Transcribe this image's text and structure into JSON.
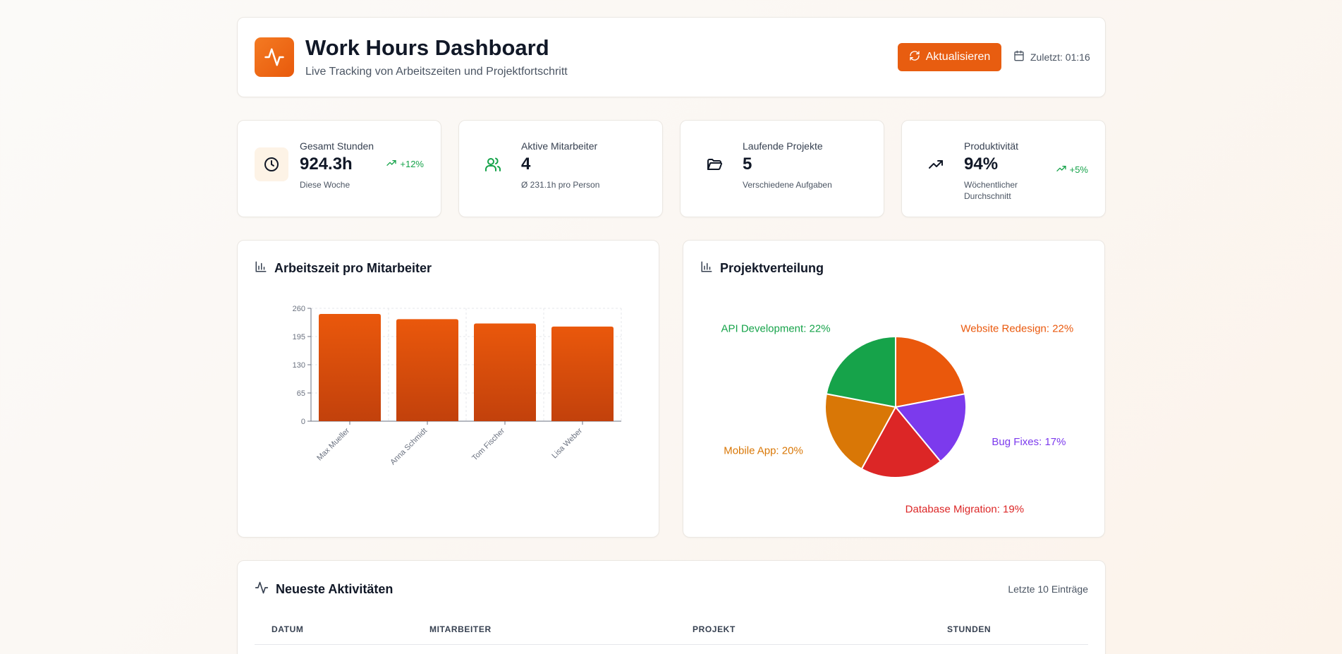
{
  "header": {
    "title": "Work Hours Dashboard",
    "subtitle": "Live Tracking von Arbeitszeiten und Projektfortschritt",
    "refresh_label": "Aktualisieren",
    "last_updated": "Zuletzt: 01:16",
    "logo_icon": "activity-icon",
    "accent_color": "#e85d10"
  },
  "stats": [
    {
      "label": "Gesamt Stunden",
      "value": "924.3h",
      "sub": "Diese Woche",
      "trend": "+12%",
      "icon": "clock-icon"
    },
    {
      "label": "Aktive Mitarbeiter",
      "value": "4",
      "sub": "Ø 231.1h pro Person",
      "trend": "",
      "icon": "users-icon"
    },
    {
      "label": "Laufende Projekte",
      "value": "5",
      "sub": "Verschiedene Aufgaben",
      "trend": "",
      "icon": "folder-icon"
    },
    {
      "label": "Produktivität",
      "value": "94%",
      "sub": "Wöchentlicher Durchschnitt",
      "trend": "+5%",
      "icon": "trending-up-icon"
    }
  ],
  "bar_card": {
    "title": "Arbeitszeit pro Mitarbeiter"
  },
  "pie_card": {
    "title": "Projektverteilung"
  },
  "chart_data": [
    {
      "type": "bar",
      "title": "",
      "xlabel": "",
      "ylabel": "",
      "categories": [
        "Max Mueller",
        "Anna Schmidt",
        "Tom Fischer",
        "Lisa Weber"
      ],
      "values": [
        247,
        235,
        225,
        218
      ],
      "ylim": [
        0,
        260
      ],
      "yticks": [
        "0",
        "65",
        "130",
        "195",
        "260"
      ],
      "grid": true,
      "color": "#e85a0c"
    },
    {
      "type": "pie",
      "title": "",
      "slices": [
        {
          "label": "Website Redesign: 22%",
          "value": 22,
          "color": "#ea580c"
        },
        {
          "label": "Bug Fixes: 17%",
          "value": 17,
          "color": "#7c3aed"
        },
        {
          "label": "Database Migration: 19%",
          "value": 19,
          "color": "#dc2626"
        },
        {
          "label": "Mobile App: 20%",
          "value": 20,
          "color": "#d97706"
        },
        {
          "label": "API Development: 22%",
          "value": 22,
          "color": "#16a34a"
        }
      ]
    }
  ],
  "activity": {
    "title": "Neueste Aktivitäten",
    "meta": "Letzte 10 Einträge",
    "columns": [
      "DATUM",
      "MITARBEITER",
      "PROJEKT",
      "STUNDEN"
    ]
  }
}
